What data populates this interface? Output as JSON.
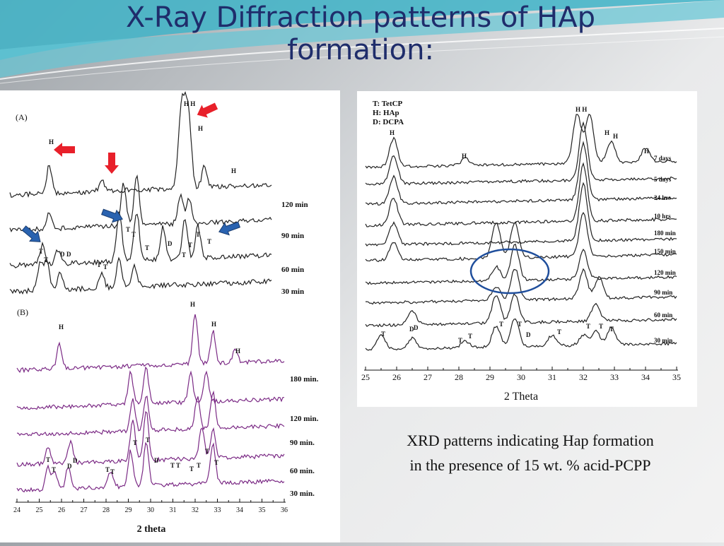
{
  "slide": {
    "title_line1": "X-Ray Diffraction patterns of HAp",
    "title_line2": "formation:",
    "caption_line1": "XRD patterns indicating Hap formation",
    "caption_line2": "in the presence of 15 wt. % acid-PCPP"
  },
  "colors": {
    "title": "#1f2d6b",
    "red_arrow": "#e8202a",
    "blue_arrow": "#2a63b0",
    "purple_trace": "#7b2a85",
    "circle": "#1f4e9c"
  },
  "chart_data": [
    {
      "panel": "(A)",
      "type": "line",
      "xlabel": "",
      "ylabel": "",
      "series": [
        {
          "name": "120 min",
          "peaks": [
            25.8,
            28.2,
            31.8,
            32.0,
            32.2,
            32.9
          ]
        },
        {
          "name": "90 min",
          "peaks": [
            25.8,
            29.2,
            29.8,
            31.8,
            32.2
          ]
        },
        {
          "name": "60 min",
          "peaks": [
            25.5,
            26.2,
            29.0,
            29.8,
            31.0,
            32.0,
            32.6
          ]
        },
        {
          "name": "30 min",
          "peaks": [
            25.4,
            25.7,
            26.3,
            28.2,
            29.0,
            29.7
          ]
        }
      ],
      "peak_labels": [
        "(A)",
        "H",
        "H H",
        "H",
        "H",
        "T",
        "T",
        "D",
        "D",
        "T",
        "T",
        "T",
        "T",
        "T",
        "D",
        "T",
        "T",
        "T",
        "T"
      ],
      "arrows": [
        "red",
        "red",
        "red",
        "blue",
        "blue",
        "blue"
      ]
    },
    {
      "panel": "(B)",
      "type": "line",
      "xlabel": "2 theta",
      "ylabel": "",
      "x_ticks": [
        24,
        25,
        26,
        27,
        28,
        29,
        30,
        31,
        32,
        33,
        34,
        35,
        36
      ],
      "xlim": [
        24,
        36
      ],
      "series": [
        {
          "name": "180 min.",
          "peaks": [
            25.9,
            32.0,
            32.8,
            33.8
          ]
        },
        {
          "name": "120 min.",
          "peaks": [
            29.1,
            29.8,
            31.8,
            32.5
          ]
        },
        {
          "name": "90 min.",
          "peaks": [
            29.2,
            29.8,
            32.1,
            32.8
          ]
        },
        {
          "name": "60 min.",
          "peaks": [
            25.4,
            26.4,
            29.2,
            29.8,
            32.3,
            32.8
          ]
        },
        {
          "name": "30 min.",
          "peaks": [
            25.4,
            25.7,
            26.3,
            28.2,
            29.1,
            29.8,
            32.8
          ]
        }
      ],
      "peak_labels": [
        "(B)",
        "H",
        "H",
        "H",
        "H",
        "T",
        "T",
        "D",
        "D",
        "T",
        "T",
        "T",
        "T",
        "D",
        "T",
        "T",
        "T",
        "T",
        "T",
        "T"
      ]
    },
    {
      "panel": "right",
      "type": "line",
      "xlabel": "2 Theta",
      "ylabel": "",
      "x_ticks": [
        25,
        26,
        27,
        28,
        29,
        30,
        31,
        32,
        33,
        34,
        35
      ],
      "xlim": [
        25,
        35
      ],
      "legend": [
        "T: TetCP",
        "H: HAp",
        "D: DCPA"
      ],
      "series": [
        {
          "name": "7 days",
          "peaks": [
            25.9,
            28.2,
            31.8,
            32.2,
            32.9,
            34.0
          ]
        },
        {
          "name": "5 days",
          "peaks": [
            25.9,
            32.0
          ]
        },
        {
          "name": "24 hrs",
          "peaks": [
            25.9,
            32.0
          ]
        },
        {
          "name": "10 hrs",
          "peaks": [
            25.9,
            32.0
          ]
        },
        {
          "name": "180 min",
          "peaks": [
            25.9,
            32.0
          ]
        },
        {
          "name": "150 min",
          "peaks": [
            25.9,
            29.2,
            29.8,
            32.0
          ]
        },
        {
          "name": "120 min",
          "peaks": [
            29.2,
            29.8,
            32.0
          ]
        },
        {
          "name": "90 min",
          "peaks": [
            29.2,
            29.8,
            32.0,
            32.5
          ]
        },
        {
          "name": "60 min",
          "peaks": [
            26.5,
            29.2,
            29.8,
            32.4
          ]
        },
        {
          "name": "30 min",
          "peaks": [
            25.5,
            26.5,
            28.2,
            29.2,
            29.8,
            31.0,
            32.0,
            32.4,
            32.9
          ]
        }
      ],
      "peak_labels": [
        "H",
        "H H",
        "H",
        "H",
        "H",
        "H",
        "T",
        "D",
        "D",
        "T",
        "T",
        "T",
        "T",
        "D",
        "T",
        "T",
        "T",
        "T"
      ],
      "highlight": "circle"
    }
  ]
}
